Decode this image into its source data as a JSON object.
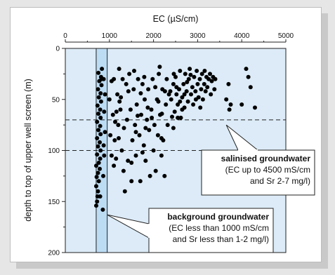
{
  "chart_data": {
    "type": "scatter",
    "xlabel": "EC (µS/cm)",
    "ylabel": "depth to top of upper well screen (m)",
    "xlim": [
      0,
      5000
    ],
    "ylim": [
      0,
      200
    ],
    "y_inverted": true,
    "x_axis_position": "top",
    "x_ticks": [
      "0",
      "1000",
      "2000",
      "3000",
      "4000",
      "5000"
    ],
    "y_ticks": [
      "0",
      "50",
      "100",
      "150",
      "200"
    ],
    "background_band": {
      "x_from": 700,
      "x_to": 950
    },
    "threshold_lines_y": [
      70,
      100
    ],
    "annotations": [
      {
        "lines": [
          "salinised groundwater",
          "(EC up to 4500 mS/cm",
          "and Sr 2-7 mg/l)"
        ],
        "bold_first": true,
        "points_to": [
          3650,
          75
        ]
      },
      {
        "lines": [
          "background groundwater",
          "(EC less than 1000 mS/cm",
          "and Sr less than 1-2 mg/l)"
        ],
        "bold_first": true,
        "points_to": [
          950,
          163
        ]
      }
    ],
    "points": [
      [
        700,
        154
      ],
      [
        720,
        150
      ],
      [
        730,
        145
      ],
      [
        740,
        140
      ],
      [
        700,
        135
      ],
      [
        760,
        130
      ],
      [
        710,
        126
      ],
      [
        740,
        122
      ],
      [
        780,
        118
      ],
      [
        700,
        115
      ],
      [
        760,
        112
      ],
      [
        790,
        108
      ],
      [
        720,
        104
      ],
      [
        800,
        100
      ],
      [
        740,
        96
      ],
      [
        780,
        92
      ],
      [
        720,
        88
      ],
      [
        800,
        84
      ],
      [
        750,
        80
      ],
      [
        790,
        76
      ],
      [
        720,
        72
      ],
      [
        800,
        68
      ],
      [
        750,
        64
      ],
      [
        790,
        60
      ],
      [
        730,
        56
      ],
      [
        810,
        52
      ],
      [
        760,
        48
      ],
      [
        800,
        44
      ],
      [
        740,
        40
      ],
      [
        820,
        36
      ],
      [
        770,
        32
      ],
      [
        810,
        28
      ],
      [
        750,
        24
      ],
      [
        820,
        30
      ],
      [
        790,
        145
      ],
      [
        860,
        125
      ],
      [
        880,
        105
      ],
      [
        870,
        95
      ],
      [
        900,
        82
      ],
      [
        880,
        62
      ],
      [
        900,
        45
      ],
      [
        870,
        30
      ],
      [
        850,
        158
      ],
      [
        830,
        20
      ],
      [
        1000,
        50
      ],
      [
        1020,
        85
      ],
      [
        1050,
        105
      ],
      [
        1080,
        65
      ],
      [
        1100,
        30
      ],
      [
        1120,
        90
      ],
      [
        1150,
        108
      ],
      [
        1180,
        45
      ],
      [
        1200,
        75
      ],
      [
        1220,
        20
      ],
      [
        1250,
        60
      ],
      [
        1280,
        100
      ],
      [
        1300,
        30
      ],
      [
        1320,
        120
      ],
      [
        1350,
        140
      ],
      [
        1380,
        35
      ],
      [
        1400,
        70
      ],
      [
        1420,
        110
      ],
      [
        1450,
        25
      ],
      [
        1480,
        60
      ],
      [
        1500,
        130
      ],
      [
        1520,
        90
      ],
      [
        1550,
        40
      ],
      [
        1580,
        75
      ],
      [
        1600,
        105
      ],
      [
        1620,
        55
      ],
      [
        1650,
        30
      ],
      [
        1680,
        85
      ],
      [
        1700,
        130
      ],
      [
        1720,
        65
      ],
      [
        1750,
        35
      ],
      [
        1780,
        95
      ],
      [
        1800,
        50
      ],
      [
        1820,
        110
      ],
      [
        1850,
        70
      ],
      [
        1880,
        40
      ],
      [
        1900,
        80
      ],
      [
        1920,
        125
      ],
      [
        1950,
        60
      ],
      [
        1980,
        30
      ],
      [
        2000,
        100
      ],
      [
        2020,
        75
      ],
      [
        2050,
        120
      ],
      [
        2080,
        50
      ],
      [
        2100,
        85
      ],
      [
        2120,
        25
      ],
      [
        2150,
        65
      ],
      [
        2180,
        105
      ],
      [
        2200,
        40
      ],
      [
        2220,
        90
      ],
      [
        2250,
        125
      ],
      [
        2280,
        55
      ],
      [
        2300,
        30
      ],
      [
        2320,
        75
      ],
      [
        2350,
        45
      ],
      [
        1100,
        115
      ],
      [
        1160,
        62
      ],
      [
        1210,
        88
      ],
      [
        1260,
        48
      ],
      [
        1330,
        78
      ],
      [
        1430,
        42
      ],
      [
        1560,
        22
      ],
      [
        1640,
        66
      ],
      [
        1710,
        44
      ],
      [
        1790,
        28
      ],
      [
        1870,
        58
      ],
      [
        1960,
        68
      ],
      [
        2040,
        38
      ],
      [
        2110,
        52
      ],
      [
        2190,
        64
      ],
      [
        2260,
        42
      ],
      [
        1500,
        112
      ],
      [
        1600,
        82
      ],
      [
        1750,
        102
      ],
      [
        1820,
        78
      ],
      [
        2140,
        18
      ],
      [
        2180,
        88
      ],
      [
        1230,
        52
      ],
      [
        1050,
        32
      ],
      [
        1130,
        72
      ],
      [
        2400,
        50
      ],
      [
        2420,
        67
      ],
      [
        2450,
        35
      ],
      [
        2480,
        62
      ],
      [
        2500,
        28
      ],
      [
        2520,
        45
      ],
      [
        2550,
        55
      ],
      [
        2580,
        40
      ],
      [
        2600,
        22
      ],
      [
        2620,
        68
      ],
      [
        2650,
        48
      ],
      [
        2680,
        35
      ],
      [
        2700,
        58
      ],
      [
        2720,
        25
      ],
      [
        2750,
        42
      ],
      [
        2780,
        52
      ],
      [
        2800,
        30
      ],
      [
        2820,
        20
      ],
      [
        2850,
        45
      ],
      [
        2880,
        38
      ],
      [
        2900,
        55
      ],
      [
        2920,
        28
      ],
      [
        2950,
        42
      ],
      [
        2980,
        22
      ],
      [
        3000,
        35
      ],
      [
        3020,
        48
      ],
      [
        3050,
        30
      ],
      [
        3080,
        40
      ],
      [
        3100,
        25
      ],
      [
        3120,
        50
      ],
      [
        3150,
        35
      ],
      [
        3180,
        42
      ],
      [
        3200,
        28
      ],
      [
        3220,
        38
      ],
      [
        3250,
        30
      ],
      [
        3280,
        25
      ],
      [
        3300,
        45
      ],
      [
        3320,
        32
      ],
      [
        3350,
        28
      ],
      [
        3380,
        40
      ],
      [
        3400,
        30
      ],
      [
        2450,
        78
      ],
      [
        2550,
        68
      ],
      [
        2650,
        60
      ],
      [
        2380,
        42
      ],
      [
        2460,
        25
      ],
      [
        2520,
        38
      ],
      [
        2600,
        52
      ],
      [
        2700,
        45
      ],
      [
        2760,
        33
      ],
      [
        2840,
        26
      ],
      [
        2960,
        50
      ],
      [
        3060,
        58
      ],
      [
        3160,
        22
      ],
      [
        3650,
        50
      ],
      [
        3700,
        35
      ],
      [
        3750,
        55
      ],
      [
        4000,
        55
      ],
      [
        4100,
        20
      ],
      [
        4150,
        28
      ],
      [
        4200,
        38
      ],
      [
        4300,
        58
      ],
      [
        3720,
        60
      ]
    ]
  }
}
